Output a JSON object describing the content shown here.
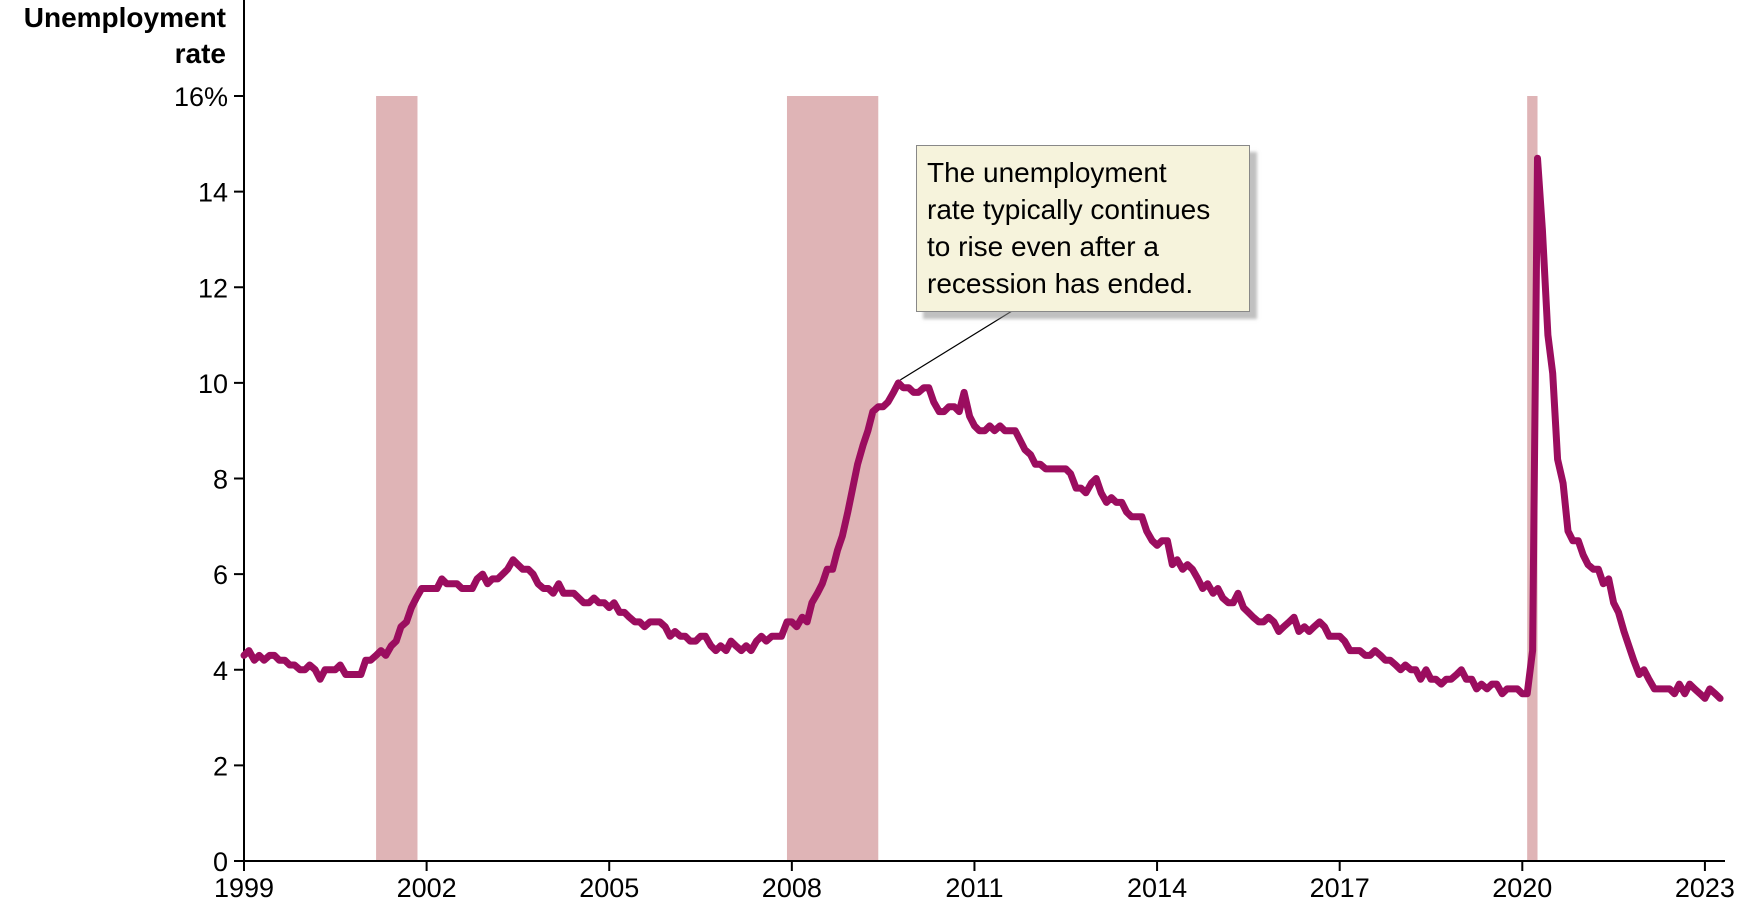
{
  "chart_data": {
    "type": "line",
    "ylabel": "Unemployment rate",
    "ylim": [
      0,
      16
    ],
    "yticks": [
      0,
      2,
      4,
      6,
      8,
      10,
      12,
      14,
      16
    ],
    "ytick_labels": [
      "0",
      "2",
      "4",
      "6",
      "8",
      "10",
      "12",
      "14",
      "16%"
    ],
    "xlim": [
      1999,
      2023.33
    ],
    "xticks": [
      1999,
      2002,
      2005,
      2008,
      2011,
      2014,
      2017,
      2020,
      2023
    ],
    "xtick_labels": [
      "1999",
      "2002",
      "2005",
      "2008",
      "2011",
      "2014",
      "2017",
      "2020",
      "2023"
    ],
    "grid": false,
    "recessions": [
      {
        "start": 2001.17,
        "end": 2001.85
      },
      {
        "start": 2007.92,
        "end": 2009.42
      },
      {
        "start": 2020.08,
        "end": 2020.25
      }
    ],
    "series": [
      {
        "color": "#9b0d5f",
        "points": [
          [
            1999.0,
            4.3
          ],
          [
            1999.08,
            4.4
          ],
          [
            1999.17,
            4.2
          ],
          [
            1999.25,
            4.3
          ],
          [
            1999.33,
            4.2
          ],
          [
            1999.42,
            4.3
          ],
          [
            1999.5,
            4.3
          ],
          [
            1999.58,
            4.2
          ],
          [
            1999.67,
            4.2
          ],
          [
            1999.75,
            4.1
          ],
          [
            1999.83,
            4.1
          ],
          [
            1999.92,
            4.0
          ],
          [
            2000.0,
            4.0
          ],
          [
            2000.08,
            4.1
          ],
          [
            2000.17,
            4.0
          ],
          [
            2000.25,
            3.8
          ],
          [
            2000.33,
            4.0
          ],
          [
            2000.42,
            4.0
          ],
          [
            2000.5,
            4.0
          ],
          [
            2000.58,
            4.1
          ],
          [
            2000.67,
            3.9
          ],
          [
            2000.75,
            3.9
          ],
          [
            2000.83,
            3.9
          ],
          [
            2000.92,
            3.9
          ],
          [
            2001.0,
            4.2
          ],
          [
            2001.08,
            4.2
          ],
          [
            2001.17,
            4.3
          ],
          [
            2001.25,
            4.4
          ],
          [
            2001.33,
            4.3
          ],
          [
            2001.42,
            4.5
          ],
          [
            2001.5,
            4.6
          ],
          [
            2001.58,
            4.9
          ],
          [
            2001.67,
            5.0
          ],
          [
            2001.75,
            5.3
          ],
          [
            2001.83,
            5.5
          ],
          [
            2001.92,
            5.7
          ],
          [
            2002.0,
            5.7
          ],
          [
            2002.08,
            5.7
          ],
          [
            2002.17,
            5.7
          ],
          [
            2002.25,
            5.9
          ],
          [
            2002.33,
            5.8
          ],
          [
            2002.42,
            5.8
          ],
          [
            2002.5,
            5.8
          ],
          [
            2002.58,
            5.7
          ],
          [
            2002.67,
            5.7
          ],
          [
            2002.75,
            5.7
          ],
          [
            2002.83,
            5.9
          ],
          [
            2002.92,
            6.0
          ],
          [
            2003.0,
            5.8
          ],
          [
            2003.08,
            5.9
          ],
          [
            2003.17,
            5.9
          ],
          [
            2003.25,
            6.0
          ],
          [
            2003.33,
            6.1
          ],
          [
            2003.42,
            6.3
          ],
          [
            2003.5,
            6.2
          ],
          [
            2003.58,
            6.1
          ],
          [
            2003.67,
            6.1
          ],
          [
            2003.75,
            6.0
          ],
          [
            2003.83,
            5.8
          ],
          [
            2003.92,
            5.7
          ],
          [
            2004.0,
            5.7
          ],
          [
            2004.08,
            5.6
          ],
          [
            2004.17,
            5.8
          ],
          [
            2004.25,
            5.6
          ],
          [
            2004.33,
            5.6
          ],
          [
            2004.42,
            5.6
          ],
          [
            2004.5,
            5.5
          ],
          [
            2004.58,
            5.4
          ],
          [
            2004.67,
            5.4
          ],
          [
            2004.75,
            5.5
          ],
          [
            2004.83,
            5.4
          ],
          [
            2004.92,
            5.4
          ],
          [
            2005.0,
            5.3
          ],
          [
            2005.08,
            5.4
          ],
          [
            2005.17,
            5.2
          ],
          [
            2005.25,
            5.2
          ],
          [
            2005.33,
            5.1
          ],
          [
            2005.42,
            5.0
          ],
          [
            2005.5,
            5.0
          ],
          [
            2005.58,
            4.9
          ],
          [
            2005.67,
            5.0
          ],
          [
            2005.75,
            5.0
          ],
          [
            2005.83,
            5.0
          ],
          [
            2005.92,
            4.9
          ],
          [
            2006.0,
            4.7
          ],
          [
            2006.08,
            4.8
          ],
          [
            2006.17,
            4.7
          ],
          [
            2006.25,
            4.7
          ],
          [
            2006.33,
            4.6
          ],
          [
            2006.42,
            4.6
          ],
          [
            2006.5,
            4.7
          ],
          [
            2006.58,
            4.7
          ],
          [
            2006.67,
            4.5
          ],
          [
            2006.75,
            4.4
          ],
          [
            2006.83,
            4.5
          ],
          [
            2006.92,
            4.4
          ],
          [
            2007.0,
            4.6
          ],
          [
            2007.08,
            4.5
          ],
          [
            2007.17,
            4.4
          ],
          [
            2007.25,
            4.5
          ],
          [
            2007.33,
            4.4
          ],
          [
            2007.42,
            4.6
          ],
          [
            2007.5,
            4.7
          ],
          [
            2007.58,
            4.6
          ],
          [
            2007.67,
            4.7
          ],
          [
            2007.75,
            4.7
          ],
          [
            2007.83,
            4.7
          ],
          [
            2007.92,
            5.0
          ],
          [
            2008.0,
            5.0
          ],
          [
            2008.08,
            4.9
          ],
          [
            2008.17,
            5.1
          ],
          [
            2008.25,
            5.0
          ],
          [
            2008.33,
            5.4
          ],
          [
            2008.42,
            5.6
          ],
          [
            2008.5,
            5.8
          ],
          [
            2008.58,
            6.1
          ],
          [
            2008.67,
            6.1
          ],
          [
            2008.75,
            6.5
          ],
          [
            2008.83,
            6.8
          ],
          [
            2008.92,
            7.3
          ],
          [
            2009.0,
            7.8
          ],
          [
            2009.08,
            8.3
          ],
          [
            2009.17,
            8.7
          ],
          [
            2009.25,
            9.0
          ],
          [
            2009.33,
            9.4
          ],
          [
            2009.42,
            9.5
          ],
          [
            2009.5,
            9.5
          ],
          [
            2009.58,
            9.6
          ],
          [
            2009.67,
            9.8
          ],
          [
            2009.75,
            10.0
          ],
          [
            2009.83,
            9.9
          ],
          [
            2009.92,
            9.9
          ],
          [
            2010.0,
            9.8
          ],
          [
            2010.08,
            9.8
          ],
          [
            2010.17,
            9.9
          ],
          [
            2010.25,
            9.9
          ],
          [
            2010.33,
            9.6
          ],
          [
            2010.42,
            9.4
          ],
          [
            2010.5,
            9.4
          ],
          [
            2010.58,
            9.5
          ],
          [
            2010.67,
            9.5
          ],
          [
            2010.75,
            9.4
          ],
          [
            2010.83,
            9.8
          ],
          [
            2010.92,
            9.3
          ],
          [
            2011.0,
            9.1
          ],
          [
            2011.08,
            9.0
          ],
          [
            2011.17,
            9.0
          ],
          [
            2011.25,
            9.1
          ],
          [
            2011.33,
            9.0
          ],
          [
            2011.42,
            9.1
          ],
          [
            2011.5,
            9.0
          ],
          [
            2011.58,
            9.0
          ],
          [
            2011.67,
            9.0
          ],
          [
            2011.75,
            8.8
          ],
          [
            2011.83,
            8.6
          ],
          [
            2011.92,
            8.5
          ],
          [
            2012.0,
            8.3
          ],
          [
            2012.08,
            8.3
          ],
          [
            2012.17,
            8.2
          ],
          [
            2012.25,
            8.2
          ],
          [
            2012.33,
            8.2
          ],
          [
            2012.42,
            8.2
          ],
          [
            2012.5,
            8.2
          ],
          [
            2012.58,
            8.1
          ],
          [
            2012.67,
            7.8
          ],
          [
            2012.75,
            7.8
          ],
          [
            2012.83,
            7.7
          ],
          [
            2012.92,
            7.9
          ],
          [
            2013.0,
            8.0
          ],
          [
            2013.08,
            7.7
          ],
          [
            2013.17,
            7.5
          ],
          [
            2013.25,
            7.6
          ],
          [
            2013.33,
            7.5
          ],
          [
            2013.42,
            7.5
          ],
          [
            2013.5,
            7.3
          ],
          [
            2013.58,
            7.2
          ],
          [
            2013.67,
            7.2
          ],
          [
            2013.75,
            7.2
          ],
          [
            2013.83,
            6.9
          ],
          [
            2013.92,
            6.7
          ],
          [
            2014.0,
            6.6
          ],
          [
            2014.08,
            6.7
          ],
          [
            2014.17,
            6.7
          ],
          [
            2014.25,
            6.2
          ],
          [
            2014.33,
            6.3
          ],
          [
            2014.42,
            6.1
          ],
          [
            2014.5,
            6.2
          ],
          [
            2014.58,
            6.1
          ],
          [
            2014.67,
            5.9
          ],
          [
            2014.75,
            5.7
          ],
          [
            2014.83,
            5.8
          ],
          [
            2014.92,
            5.6
          ],
          [
            2015.0,
            5.7
          ],
          [
            2015.08,
            5.5
          ],
          [
            2015.17,
            5.4
          ],
          [
            2015.25,
            5.4
          ],
          [
            2015.33,
            5.6
          ],
          [
            2015.42,
            5.3
          ],
          [
            2015.5,
            5.2
          ],
          [
            2015.58,
            5.1
          ],
          [
            2015.67,
            5.0
          ],
          [
            2015.75,
            5.0
          ],
          [
            2015.83,
            5.1
          ],
          [
            2015.92,
            5.0
          ],
          [
            2016.0,
            4.8
          ],
          [
            2016.08,
            4.9
          ],
          [
            2016.17,
            5.0
          ],
          [
            2016.25,
            5.1
          ],
          [
            2016.33,
            4.8
          ],
          [
            2016.42,
            4.9
          ],
          [
            2016.5,
            4.8
          ],
          [
            2016.58,
            4.9
          ],
          [
            2016.67,
            5.0
          ],
          [
            2016.75,
            4.9
          ],
          [
            2016.83,
            4.7
          ],
          [
            2016.92,
            4.7
          ],
          [
            2017.0,
            4.7
          ],
          [
            2017.08,
            4.6
          ],
          [
            2017.17,
            4.4
          ],
          [
            2017.25,
            4.4
          ],
          [
            2017.33,
            4.4
          ],
          [
            2017.42,
            4.3
          ],
          [
            2017.5,
            4.3
          ],
          [
            2017.58,
            4.4
          ],
          [
            2017.67,
            4.3
          ],
          [
            2017.75,
            4.2
          ],
          [
            2017.83,
            4.2
          ],
          [
            2017.92,
            4.1
          ],
          [
            2018.0,
            4.0
          ],
          [
            2018.08,
            4.1
          ],
          [
            2018.17,
            4.0
          ],
          [
            2018.25,
            4.0
          ],
          [
            2018.33,
            3.8
          ],
          [
            2018.42,
            4.0
          ],
          [
            2018.5,
            3.8
          ],
          [
            2018.58,
            3.8
          ],
          [
            2018.67,
            3.7
          ],
          [
            2018.75,
            3.8
          ],
          [
            2018.83,
            3.8
          ],
          [
            2018.92,
            3.9
          ],
          [
            2019.0,
            4.0
          ],
          [
            2019.08,
            3.8
          ],
          [
            2019.17,
            3.8
          ],
          [
            2019.25,
            3.6
          ],
          [
            2019.33,
            3.7
          ],
          [
            2019.42,
            3.6
          ],
          [
            2019.5,
            3.7
          ],
          [
            2019.58,
            3.7
          ],
          [
            2019.67,
            3.5
          ],
          [
            2019.75,
            3.6
          ],
          [
            2019.83,
            3.6
          ],
          [
            2019.92,
            3.6
          ],
          [
            2020.0,
            3.5
          ],
          [
            2020.08,
            3.5
          ],
          [
            2020.17,
            4.4
          ],
          [
            2020.25,
            14.7
          ],
          [
            2020.33,
            13.2
          ],
          [
            2020.42,
            11.0
          ],
          [
            2020.5,
            10.2
          ],
          [
            2020.58,
            8.4
          ],
          [
            2020.67,
            7.9
          ],
          [
            2020.75,
            6.9
          ],
          [
            2020.83,
            6.7
          ],
          [
            2020.92,
            6.7
          ],
          [
            2021.0,
            6.4
          ],
          [
            2021.08,
            6.2
          ],
          [
            2021.17,
            6.1
          ],
          [
            2021.25,
            6.1
          ],
          [
            2021.33,
            5.8
          ],
          [
            2021.42,
            5.9
          ],
          [
            2021.5,
            5.4
          ],
          [
            2021.58,
            5.2
          ],
          [
            2021.67,
            4.8
          ],
          [
            2021.75,
            4.5
          ],
          [
            2021.83,
            4.2
          ],
          [
            2021.92,
            3.9
          ],
          [
            2022.0,
            4.0
          ],
          [
            2022.08,
            3.8
          ],
          [
            2022.17,
            3.6
          ],
          [
            2022.25,
            3.6
          ],
          [
            2022.33,
            3.6
          ],
          [
            2022.42,
            3.6
          ],
          [
            2022.5,
            3.5
          ],
          [
            2022.58,
            3.7
          ],
          [
            2022.67,
            3.5
          ],
          [
            2022.75,
            3.7
          ],
          [
            2022.83,
            3.6
          ],
          [
            2022.92,
            3.5
          ],
          [
            2023.0,
            3.4
          ],
          [
            2023.08,
            3.6
          ],
          [
            2023.17,
            3.5
          ],
          [
            2023.25,
            3.4
          ]
        ]
      }
    ],
    "annotations": [
      {
        "lines": [
          "The unemployment",
          "rate typically continues",
          "to rise even after a",
          "recession has ended."
        ],
        "target": [
          2009.75,
          10.0
        ]
      }
    ]
  }
}
